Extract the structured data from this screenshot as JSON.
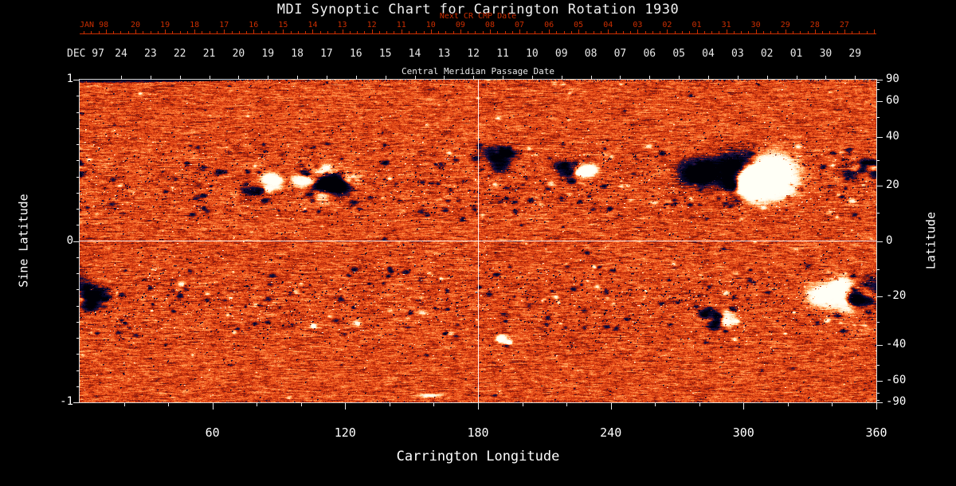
{
  "title": "MDI Synoptic Chart for Carrington Rotation 1930",
  "colors": {
    "background": "#000000",
    "foreground": "#e8e8e8",
    "red_accent": "#cc2e00"
  },
  "top_axis_red": {
    "era": "JAN 98",
    "label": "Next CR CMP Date",
    "ticks": [
      "20",
      "19",
      "18",
      "17",
      "16",
      "15",
      "14",
      "13",
      "12",
      "11",
      "10",
      "09",
      "08",
      "07",
      "06",
      "05",
      "04",
      "03",
      "02",
      "01",
      "31",
      "30",
      "29",
      "28",
      "27"
    ]
  },
  "top_axis_white": {
    "era": "DEC 97",
    "label": "Central Meridian Passage Date",
    "ticks": [
      "24",
      "23",
      "22",
      "21",
      "20",
      "19",
      "18",
      "17",
      "16",
      "15",
      "14",
      "13",
      "12",
      "11",
      "10",
      "09",
      "08",
      "07",
      "06",
      "05",
      "04",
      "03",
      "02",
      "01",
      "30",
      "29"
    ]
  },
  "axes": {
    "left": {
      "title": "Sine Latitude",
      "ticks": [
        "1",
        "0",
        "-1"
      ]
    },
    "right": {
      "title": "Latitude",
      "ticks": [
        90,
        60,
        40,
        20,
        0,
        -20,
        -40,
        -60,
        -90
      ]
    },
    "bottom": {
      "title": "Carrington Longitude",
      "ticks": [
        60,
        120,
        180,
        240,
        300,
        360
      ]
    }
  },
  "chart_data": {
    "type": "heatmap",
    "title": "MDI Synoptic Chart for Carrington Rotation 1930",
    "xlabel": "Carrington Longitude",
    "ylabel": "Sine Latitude",
    "ylabel_right": "Latitude",
    "xlim": [
      0,
      360
    ],
    "ylim": [
      -1,
      1
    ],
    "x_ticks": [
      60,
      120,
      180,
      240,
      300,
      360
    ],
    "left_ticks": [
      1,
      0,
      -1
    ],
    "right_ticks": [
      90,
      60,
      40,
      20,
      0,
      -20,
      -40,
      -60,
      -90
    ],
    "grid": "crosshair",
    "crosshair": {
      "longitude": 180,
      "sine_latitude": 0
    },
    "colormap": {
      "strong_negative": "#10104a",
      "negative": "#a02010",
      "zero": "#e34818",
      "positive": "#ffaa60",
      "strong_positive": "#fff8e6"
    },
    "active_regions": [
      {
        "lon": 84,
        "sine_lat": 0.34,
        "size": "medium",
        "style": "bipolar"
      },
      {
        "lon": 112,
        "sine_lat": 0.37,
        "size": "large",
        "style": "bipolar-mixed"
      },
      {
        "lon": 188,
        "sine_lat": 0.5,
        "size": "medium",
        "style": "dark-dominant"
      },
      {
        "lon": 224,
        "sine_lat": 0.43,
        "size": "medium",
        "style": "bipolar"
      },
      {
        "lon": 301,
        "sine_lat": 0.38,
        "size": "xlarge",
        "style": "bipolar"
      },
      {
        "lon": 356,
        "sine_lat": 0.46,
        "size": "medium",
        "style": "dark"
      },
      {
        "lon": 189,
        "sine_lat": -0.62,
        "size": "small",
        "style": "bipolar"
      },
      {
        "lon": 290,
        "sine_lat": -0.47,
        "size": "medium",
        "style": "bipolar"
      },
      {
        "lon": 349,
        "sine_lat": -0.33,
        "size": "large",
        "style": "white-dominant"
      },
      {
        "lon": 3,
        "sine_lat": -0.35,
        "size": "medium",
        "style": "dark"
      }
    ]
  }
}
